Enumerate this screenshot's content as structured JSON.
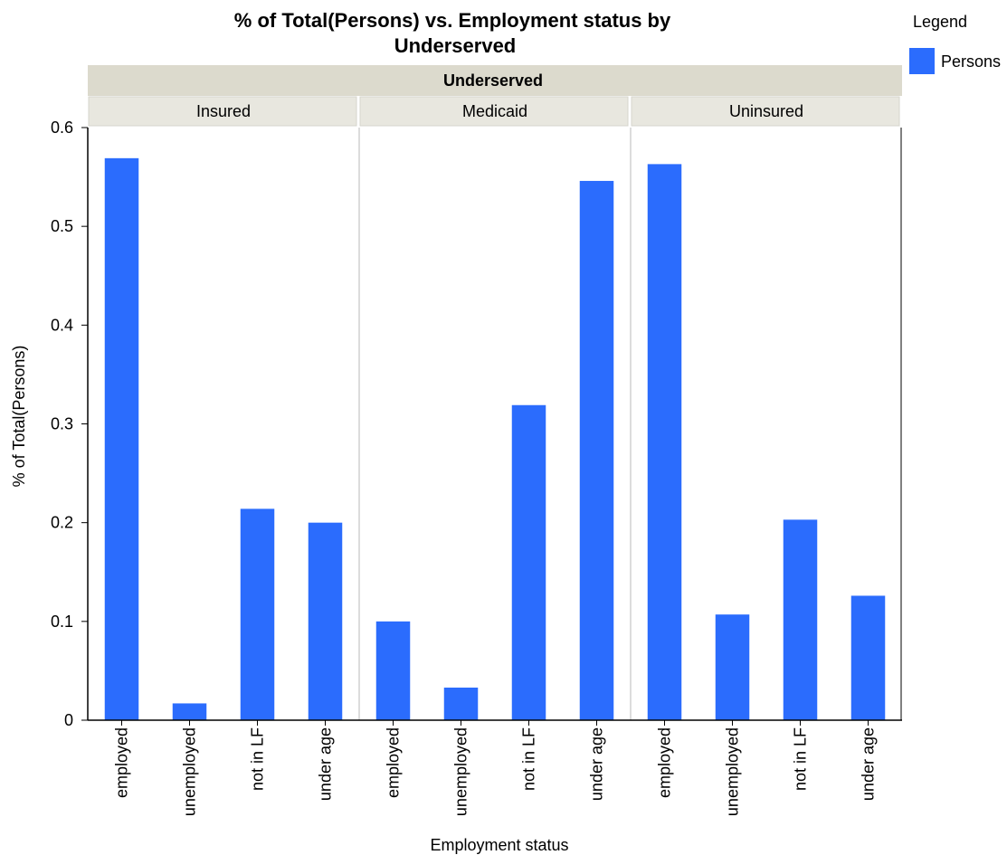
{
  "chart_data": {
    "type": "bar",
    "title": "% of Total(Persons) vs. Employment status by Underserved",
    "title_lines": [
      "% of Total(Persons) vs. Employment status by",
      "Underserved"
    ],
    "xlabel": "Employment status",
    "ylabel": "% of Total(Persons)",
    "ylim": [
      0,
      0.6
    ],
    "yticks": [
      "0",
      "0.1",
      "0.2",
      "0.3",
      "0.4",
      "0.5",
      "0.6"
    ],
    "facet_variable": "Underserved",
    "categories": [
      "employed",
      "unemployed",
      "not in LF",
      "under age"
    ],
    "color": "#2b6cfd",
    "grid": false,
    "legend": {
      "title": "Legend",
      "placement": "top-right",
      "entries": [
        "Persons"
      ]
    },
    "panels": [
      {
        "name": "Insured",
        "series": [
          {
            "name": "Persons",
            "values": [
              0.569,
              0.017,
              0.214,
              0.2
            ]
          }
        ]
      },
      {
        "name": "Medicaid",
        "series": [
          {
            "name": "Persons",
            "values": [
              0.1,
              0.033,
              0.319,
              0.546
            ]
          }
        ]
      },
      {
        "name": "Uninsured",
        "series": [
          {
            "name": "Persons",
            "values": [
              0.563,
              0.107,
              0.203,
              0.126
            ]
          }
        ]
      }
    ]
  }
}
